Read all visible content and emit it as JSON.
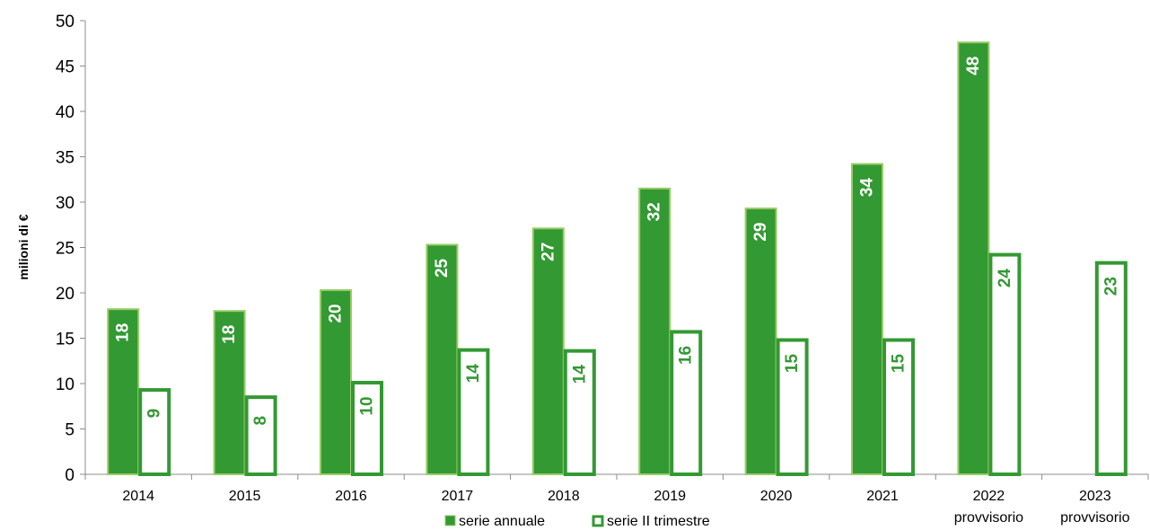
{
  "chart_data": {
    "type": "bar",
    "ylabel": "milioni di €",
    "xlabel": "",
    "ylim": [
      0,
      50
    ],
    "y_ticks": [
      0,
      5,
      10,
      15,
      20,
      25,
      30,
      35,
      40,
      45,
      50
    ],
    "grid": false,
    "legend_position": "bottom",
    "categories": [
      [
        "2014"
      ],
      [
        "2015"
      ],
      [
        "2016"
      ],
      [
        "2017"
      ],
      [
        "2018"
      ],
      [
        "2019"
      ],
      [
        "2020"
      ],
      [
        "2021"
      ],
      [
        "2022",
        "provvisorio"
      ],
      [
        "2023",
        "provvisorio"
      ]
    ],
    "series": [
      {
        "name": "serie annuale",
        "style": "filled",
        "values": [
          18.2,
          18.0,
          20.3,
          25.3,
          27.1,
          31.5,
          29.3,
          34.2,
          47.6,
          null
        ],
        "labels": [
          "18",
          "18",
          "20",
          "25",
          "27",
          "32",
          "29",
          "34",
          "48",
          ""
        ]
      },
      {
        "name": "serie II trimestre",
        "style": "outline",
        "values": [
          9.3,
          8.5,
          10.1,
          13.7,
          13.6,
          15.7,
          14.8,
          14.8,
          24.2,
          23.3
        ],
        "labels": [
          "9",
          "8",
          "10",
          "14",
          "14",
          "16",
          "15",
          "15",
          "24",
          "23"
        ]
      }
    ],
    "colors": {
      "fill": "#339933",
      "fill_border": "#99cc66",
      "outline": "#339933",
      "label_on_fill": "#ffffff",
      "label_on_outline": "#339933"
    }
  }
}
